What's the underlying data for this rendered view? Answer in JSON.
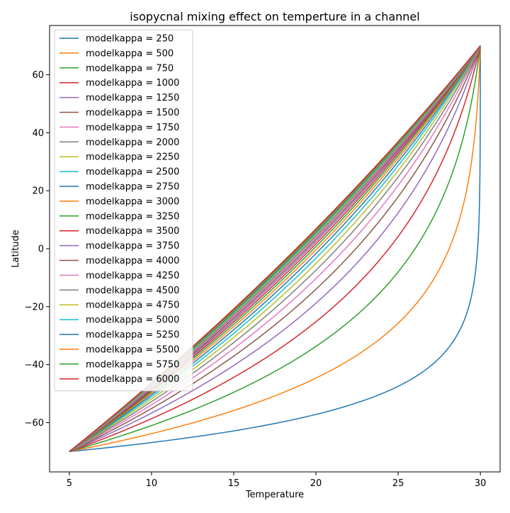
{
  "chart_data": {
    "type": "line",
    "title": "isopycnal mixing effect on temperture in a channel",
    "xlabel": "Temperature",
    "ylabel": "Latitude",
    "xlim": [
      3.8,
      31.2
    ],
    "ylim": [
      -77,
      77
    ],
    "xticks": [
      5,
      10,
      15,
      20,
      25,
      30
    ],
    "yticks": [
      -60,
      -40,
      -20,
      0,
      20,
      40,
      60
    ],
    "xtick_labels": [
      "5",
      "10",
      "15",
      "20",
      "25",
      "30"
    ],
    "ytick_labels": [
      "−60",
      "−40",
      "−20",
      "0",
      "20",
      "40",
      "60"
    ],
    "grid": false,
    "legend_placement": "upper-left",
    "curve_endpoints": {
      "start": [
        5,
        -70
      ],
      "end": [
        30,
        70
      ]
    },
    "colors": [
      "#1f77b4",
      "#ff7f0e",
      "#2ca02c",
      "#d62728",
      "#9467bd",
      "#8c564b",
      "#e377c2",
      "#7f7f7f",
      "#bcbd22",
      "#17becf"
    ],
    "series": [
      {
        "name": "modelkappa = 250",
        "kappa": 250
      },
      {
        "name": "modelkappa = 500",
        "kappa": 500
      },
      {
        "name": "modelkappa = 750",
        "kappa": 750
      },
      {
        "name": "modelkappa = 1000",
        "kappa": 1000
      },
      {
        "name": "modelkappa = 1250",
        "kappa": 1250
      },
      {
        "name": "modelkappa = 1500",
        "kappa": 1500
      },
      {
        "name": "modelkappa = 1750",
        "kappa": 1750
      },
      {
        "name": "modelkappa = 2000",
        "kappa": 2000
      },
      {
        "name": "modelkappa = 2250",
        "kappa": 2250
      },
      {
        "name": "modelkappa = 2500",
        "kappa": 2500
      },
      {
        "name": "modelkappa = 2750",
        "kappa": 2750
      },
      {
        "name": "modelkappa = 3000",
        "kappa": 3000
      },
      {
        "name": "modelkappa = 3250",
        "kappa": 3250
      },
      {
        "name": "modelkappa = 3500",
        "kappa": 3500
      },
      {
        "name": "modelkappa = 3750",
        "kappa": 3750
      },
      {
        "name": "modelkappa = 4000",
        "kappa": 4000
      },
      {
        "name": "modelkappa = 4250",
        "kappa": 4250
      },
      {
        "name": "modelkappa = 4500",
        "kappa": 4500
      },
      {
        "name": "modelkappa = 4750",
        "kappa": 4750
      },
      {
        "name": "modelkappa = 5000",
        "kappa": 5000
      },
      {
        "name": "modelkappa = 5250",
        "kappa": 5250
      },
      {
        "name": "modelkappa = 5500",
        "kappa": 5500
      },
      {
        "name": "modelkappa = 5750",
        "kappa": 5750
      },
      {
        "name": "modelkappa = 6000",
        "kappa": 6000
      }
    ]
  }
}
